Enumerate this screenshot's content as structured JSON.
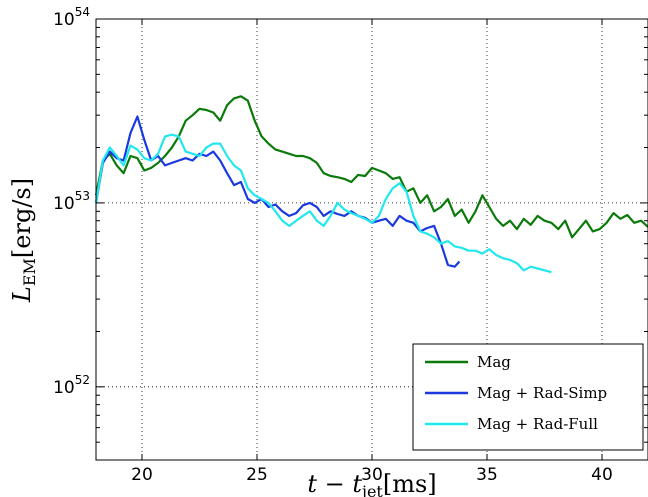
{
  "chart_data": {
    "type": "line",
    "title": "",
    "xlabel": "t − t_jet [ms]",
    "xlabel_parts": {
      "main": "t − t",
      "sub": "jet",
      "unit": "[ms]"
    },
    "ylabel": "L_EM [erg/s]",
    "ylabel_parts": {
      "main": "L",
      "sub": "EM",
      "unit": "[erg/s]"
    },
    "xlim": [
      18,
      42
    ],
    "ylim": [
      4e+51,
      1e+54
    ],
    "yscale": "log",
    "grid": true,
    "legend_position": "lower-right",
    "x_ticks": [
      {
        "value": 20,
        "label": "20"
      },
      {
        "value": 25,
        "label": "25"
      },
      {
        "value": 30,
        "label": "30"
      },
      {
        "value": 35,
        "label": "35"
      },
      {
        "value": 40,
        "label": "40"
      }
    ],
    "y_ticks": [
      {
        "value": 1e+52,
        "base": "10",
        "exp": "52"
      },
      {
        "value": 1e+53,
        "base": "10",
        "exp": "53"
      },
      {
        "value": 1e+54,
        "base": "10",
        "exp": "54"
      }
    ],
    "series": [
      {
        "name": "Mag",
        "color": "#0a7a0a",
        "x": [
          18.0,
          18.3,
          18.6,
          18.9,
          19.2,
          19.5,
          19.8,
          20.1,
          20.4,
          20.7,
          21.0,
          21.3,
          21.6,
          21.9,
          22.2,
          22.5,
          22.8,
          23.1,
          23.4,
          23.7,
          24.0,
          24.3,
          24.6,
          24.9,
          25.2,
          25.5,
          25.8,
          26.1,
          26.4,
          26.7,
          27.0,
          27.3,
          27.6,
          27.9,
          28.2,
          28.5,
          28.8,
          29.1,
          29.4,
          29.7,
          30.0,
          30.3,
          30.6,
          30.9,
          31.2,
          31.5,
          31.8,
          32.1,
          32.4,
          32.7,
          33.0,
          33.3,
          33.6,
          33.9,
          34.2,
          34.5,
          34.8,
          35.1,
          35.4,
          35.7,
          36.0,
          36.3,
          36.6,
          36.9,
          37.2,
          37.5,
          37.8,
          38.1,
          38.4,
          38.7,
          39.0,
          39.3,
          39.6,
          39.9,
          40.2,
          40.5,
          40.8,
          41.1,
          41.4,
          41.7,
          42.0
        ],
        "y": [
          1.1e+53,
          1.7e+53,
          1.85e+53,
          1.6e+53,
          1.45e+53,
          1.8e+53,
          1.75e+53,
          1.5e+53,
          1.55e+53,
          1.65e+53,
          1.8e+53,
          2e+53,
          2.3e+53,
          2.8e+53,
          3e+53,
          3.25e+53,
          3.2e+53,
          3.1e+53,
          2.8e+53,
          3.4e+53,
          3.7e+53,
          3.8e+53,
          3.6e+53,
          2.8e+53,
          2.3e+53,
          2.1e+53,
          1.95e+53,
          1.9e+53,
          1.85e+53,
          1.8e+53,
          1.8e+53,
          1.75e+53,
          1.65e+53,
          1.45e+53,
          1.4e+53,
          1.38e+53,
          1.35e+53,
          1.3e+53,
          1.42e+53,
          1.4e+53,
          1.55e+53,
          1.5e+53,
          1.45e+53,
          1.35e+53,
          1.38e+53,
          1.15e+53,
          1.2e+53,
          1e+53,
          1.1e+53,
          9e+52,
          9.5e+52,
          1.05e+53,
          8.5e+52,
          9.2e+52,
          7.8e+52,
          9e+52,
          1.1e+53,
          9.5e+52,
          8.2e+52,
          7.5e+52,
          8e+52,
          7.2e+52,
          8.2e+52,
          7.6e+52,
          8.5e+52,
          8e+52,
          7.8e+52,
          7.2e+52,
          8e+52,
          6.5e+52,
          7.2e+52,
          8e+52,
          7e+52,
          7.2e+52,
          7.8e+52,
          8.8e+52,
          8.2e+52,
          8.6e+52,
          7.8e+52,
          8e+52,
          7.4e+52
        ]
      },
      {
        "name": "Mag + Rad-Simp",
        "color": "#1a3adf",
        "x": [
          18.0,
          18.3,
          18.6,
          18.9,
          19.2,
          19.5,
          19.8,
          20.1,
          20.4,
          20.7,
          21.0,
          21.3,
          21.6,
          21.9,
          22.2,
          22.5,
          22.8,
          23.1,
          23.4,
          23.7,
          24.0,
          24.3,
          24.6,
          24.9,
          25.2,
          25.5,
          25.8,
          26.1,
          26.4,
          26.7,
          27.0,
          27.3,
          27.6,
          27.9,
          28.2,
          28.5,
          28.8,
          29.1,
          29.4,
          29.7,
          30.0,
          30.3,
          30.6,
          30.9,
          31.2,
          31.5,
          31.8,
          32.1,
          32.4,
          32.7,
          33.0,
          33.3,
          33.6,
          33.8
        ],
        "y": [
          1e+53,
          1.65e+53,
          1.9e+53,
          1.75e+53,
          1.7e+53,
          2.4e+53,
          2.95e+53,
          2.2e+53,
          1.7e+53,
          1.8e+53,
          1.6e+53,
          1.65e+53,
          1.7e+53,
          1.75e+53,
          1.7e+53,
          1.85e+53,
          1.8e+53,
          1.9e+53,
          1.7e+53,
          1.45e+53,
          1.25e+53,
          1.3e+53,
          1.05e+53,
          1e+53,
          1.05e+53,
          9.5e+52,
          9.8e+52,
          9e+52,
          8.5e+52,
          8.8e+52,
          9.7e+52,
          1e+53,
          9.5e+52,
          8.5e+52,
          9e+52,
          8.7e+52,
          8.5e+52,
          9e+52,
          8.5e+52,
          8.3e+52,
          7.8e+52,
          8e+52,
          8.2e+52,
          7.5e+52,
          8.5e+52,
          8e+52,
          7.8e+52,
          7e+52,
          7.3e+52,
          7.5e+52,
          6e+52,
          4.6e+52,
          4.5e+52,
          4.8e+52
        ]
      },
      {
        "name": "Mag + Rad-Full",
        "color": "#22e8ee",
        "x": [
          18.0,
          18.3,
          18.6,
          18.9,
          19.2,
          19.5,
          19.8,
          20.1,
          20.4,
          20.7,
          21.0,
          21.3,
          21.6,
          21.9,
          22.2,
          22.5,
          22.8,
          23.1,
          23.4,
          23.7,
          24.0,
          24.3,
          24.6,
          24.9,
          25.2,
          25.5,
          25.8,
          26.1,
          26.4,
          26.7,
          27.0,
          27.3,
          27.6,
          27.9,
          28.2,
          28.5,
          28.8,
          29.1,
          29.4,
          29.7,
          30.0,
          30.3,
          30.6,
          30.9,
          31.2,
          31.5,
          31.8,
          32.1,
          32.4,
          32.7,
          33.0,
          33.3,
          33.6,
          33.9,
          34.2,
          34.5,
          34.8,
          35.1,
          35.4,
          35.7,
          36.0,
          36.3,
          36.6,
          36.9,
          37.2,
          37.5,
          37.8
        ],
        "y": [
          1e+53,
          1.7e+53,
          2e+53,
          1.8e+53,
          1.6e+53,
          2.05e+53,
          1.95e+53,
          1.75e+53,
          1.7e+53,
          1.85e+53,
          2.3e+53,
          2.35e+53,
          2.3e+53,
          1.9e+53,
          1.85e+53,
          1.8e+53,
          2e+53,
          2.1e+53,
          2.1e+53,
          1.8e+53,
          1.6e+53,
          1.5e+53,
          1.2e+53,
          1.1e+53,
          1.05e+53,
          1e+53,
          9e+52,
          8e+52,
          7.5e+52,
          8e+52,
          8.5e+52,
          9e+52,
          8e+52,
          7.5e+52,
          8.5e+52,
          1e+53,
          9.2e+52,
          8.8e+52,
          8.5e+52,
          8.2e+52,
          7.8e+52,
          8.5e+52,
          1.05e+53,
          1.2e+53,
          1.28e+53,
          1.15e+53,
          8.5e+52,
          7e+52,
          6.8e+52,
          6.5e+52,
          6e+52,
          6.2e+52,
          5.8e+52,
          5.7e+52,
          5.5e+52,
          5.5e+52,
          5.3e+52,
          5.6e+52,
          5.2e+52,
          5e+52,
          4.9e+52,
          4.7e+52,
          4.3e+52,
          4.5e+52,
          4.4e+52,
          4.3e+52,
          4.2e+52
        ]
      }
    ]
  }
}
